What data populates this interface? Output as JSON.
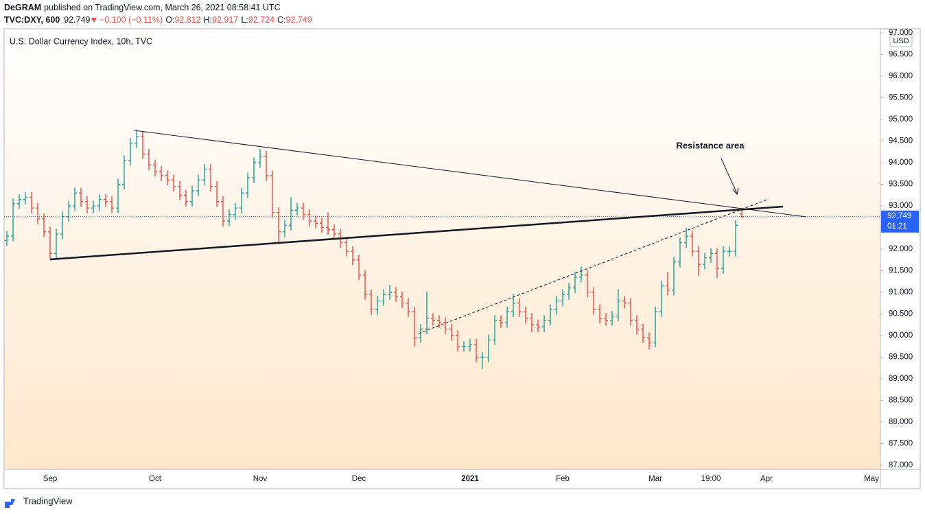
{
  "header": {
    "author": "DeGRAM",
    "published": "published on TradingView.com, March 26, 2021 08:58:41 UTC",
    "symbol": "TVC:DXY, 600",
    "change": "−0.100 (−0.11%)",
    "o_label": "O:",
    "h_label": "H:",
    "l_label": "L:",
    "c_label": "C:"
  },
  "annotation": "Resistance area",
  "currency": "USD",
  "countdown": "01:21",
  "footer": {
    "brand": "TradingView"
  },
  "chart_data": {
    "type": "ohlc",
    "title": "U.S. Dollar Currency Index, 10h, TVC",
    "up_color": "#26a69a",
    "down_color": "#ef5350",
    "ylim": [
      86.905,
      97.095
    ],
    "yticks": [
      {
        "value": 87,
        "label": "87.000"
      },
      {
        "value": 87.5,
        "label": "87.500"
      },
      {
        "value": 88,
        "label": "88.000"
      },
      {
        "value": 88.5,
        "label": "88.500"
      },
      {
        "value": 89,
        "label": "89.000"
      },
      {
        "value": 89.5,
        "label": "89.500"
      },
      {
        "value": 90,
        "label": "90.000"
      },
      {
        "value": 90.5,
        "label": "90.500"
      },
      {
        "value": 91,
        "label": "91.000"
      },
      {
        "value": 91.5,
        "label": "91.500"
      },
      {
        "value": 92,
        "label": "92.000"
      },
      {
        "value": 92.5,
        "label": "92.500"
      },
      {
        "value": 93,
        "label": "93.000"
      },
      {
        "value": 93.5,
        "label": "93.500"
      },
      {
        "value": 94,
        "label": "94.000"
      },
      {
        "value": 94.5,
        "label": "94.500"
      },
      {
        "value": 95,
        "label": "95.000"
      },
      {
        "value": 95.5,
        "label": "95.500"
      },
      {
        "value": 96,
        "label": "96.000"
      },
      {
        "value": 96.5,
        "label": "96.500"
      },
      {
        "value": 97,
        "label": "97.000"
      }
    ],
    "grid": false,
    "categories": [
      null,
      null,
      null,
      null,
      null,
      null,
      null,
      "Sep",
      null,
      null,
      null,
      null,
      null,
      null,
      null,
      null,
      null,
      null,
      null,
      null,
      null,
      null,
      null,
      null,
      "Oct",
      null,
      null,
      null,
      null,
      null,
      null,
      null,
      null,
      null,
      null,
      null,
      null,
      null,
      null,
      null,
      null,
      "Nov",
      null,
      null,
      null,
      null,
      null,
      null,
      null,
      null,
      null,
      null,
      null,
      null,
      null,
      null,
      null,
      "Dec",
      null,
      null,
      null,
      null,
      null,
      null,
      null,
      null,
      null,
      null,
      null,
      null,
      null,
      null,
      null,
      null,
      null,
      "2021",
      null,
      null,
      null,
      null,
      null,
      null,
      null,
      null,
      null,
      null,
      null,
      null,
      null,
      null,
      "Feb",
      null,
      null,
      null,
      null,
      null,
      null,
      null,
      null,
      null,
      null,
      null,
      null,
      null,
      null,
      "Mar",
      null,
      null,
      null,
      null,
      null,
      null,
      null,
      null,
      "19:00",
      null,
      null,
      null,
      null,
      null,
      null,
      null,
      null,
      "Apr",
      null,
      null,
      null,
      null,
      null,
      null,
      null,
      null,
      null,
      null,
      null,
      null,
      null,
      null,
      null,
      null,
      "May"
    ],
    "open": [
      92.2,
      92.3,
      93.05,
      93.15,
      93.2,
      92.95,
      92.7,
      92.4,
      91.9,
      92.35,
      92.75,
      93.0,
      93.3,
      93.1,
      92.95,
      93.0,
      93.15,
      93.1,
      92.95,
      93.5,
      94.05,
      94.45,
      94.6,
      94.2,
      93.95,
      93.8,
      93.7,
      93.6,
      93.45,
      93.25,
      93.1,
      93.35,
      93.6,
      93.85,
      93.45,
      93.1,
      92.65,
      92.8,
      92.95,
      93.3,
      93.65,
      94.0,
      94.15,
      93.7,
      92.85,
      92.4,
      92.55,
      92.9,
      92.95,
      92.8,
      92.65,
      92.6,
      92.5,
      92.45,
      92.35,
      92.15,
      91.95,
      91.75,
      91.4,
      90.95,
      90.6,
      90.8,
      90.95,
      91.0,
      90.9,
      90.75,
      90.55,
      89.95,
      90.15,
      90.4,
      90.35,
      90.3,
      90.15,
      90.0,
      89.75,
      89.75,
      89.8,
      89.5,
      89.5,
      89.9,
      90.35,
      90.3,
      90.55,
      90.75,
      90.55,
      90.4,
      90.25,
      90.2,
      90.35,
      90.6,
      90.8,
      90.95,
      91.1,
      91.35,
      91.4,
      91.0,
      90.6,
      90.4,
      90.35,
      90.45,
      90.8,
      90.75,
      90.35,
      90.15,
      89.95,
      89.85,
      90.55,
      91.15,
      91.05,
      91.7,
      92.15,
      92.3,
      91.95,
      91.65,
      91.8,
      91.9,
      91.55,
      91.95,
      91.95,
      92.812,
      null,
      null,
      null,
      null,
      null,
      null,
      null,
      null,
      null,
      null,
      null,
      null,
      null,
      null,
      null,
      null,
      null,
      null,
      null,
      null,
      null
    ],
    "high": [
      92.42,
      93.17,
      93.27,
      93.32,
      93.32,
      93.07,
      92.82,
      92.52,
      92.47,
      92.87,
      93.12,
      93.42,
      93.42,
      93.22,
      93.12,
      93.27,
      93.27,
      93.22,
      93.62,
      94.17,
      94.57,
      94.75,
      94.72,
      94.32,
      94.07,
      93.92,
      93.82,
      93.72,
      93.57,
      93.37,
      93.47,
      93.72,
      93.97,
      93.97,
      93.57,
      93.22,
      92.92,
      93.07,
      93.42,
      93.77,
      94.12,
      94.32,
      94.27,
      93.82,
      92.97,
      92.67,
      93.2,
      93.07,
      93.07,
      92.92,
      92.77,
      92.72,
      92.85,
      92.57,
      92.47,
      92.27,
      92.07,
      91.87,
      91.52,
      91.07,
      90.92,
      91.07,
      91.17,
      91.12,
      91.02,
      90.87,
      90.67,
      90.27,
      91.02,
      90.52,
      90.47,
      90.42,
      90.27,
      90.12,
      89.87,
      89.92,
      89.92,
      89.62,
      90.02,
      90.47,
      90.47,
      90.67,
      90.97,
      90.87,
      90.67,
      90.52,
      90.37,
      90.47,
      90.72,
      90.92,
      91.07,
      91.22,
      91.47,
      91.6,
      91.52,
      91.12,
      90.72,
      90.52,
      90.57,
      91.07,
      90.92,
      90.87,
      90.47,
      90.27,
      90.07,
      90.67,
      91.27,
      91.47,
      91.82,
      92.27,
      92.5,
      92.42,
      92.07,
      91.92,
      92.02,
      92.02,
      92.07,
      92.07,
      92.67,
      92.917,
      null,
      null,
      null,
      null,
      null,
      null,
      null,
      null,
      null,
      null,
      null,
      null,
      null,
      null,
      null,
      null,
      null,
      null,
      null,
      null,
      null
    ],
    "low": [
      92.08,
      92.18,
      92.93,
      93.03,
      92.83,
      92.58,
      92.28,
      91.77,
      91.78,
      92.23,
      92.63,
      92.88,
      92.98,
      92.83,
      92.83,
      92.88,
      92.98,
      92.83,
      92.83,
      93.38,
      93.93,
      94.33,
      94.08,
      93.83,
      93.68,
      93.58,
      93.48,
      93.33,
      93.13,
      92.98,
      92.98,
      93.23,
      93.48,
      93.33,
      92.98,
      92.53,
      92.53,
      92.68,
      92.83,
      93.18,
      93.53,
      93.88,
      93.58,
      92.73,
      92.13,
      92.28,
      92.43,
      92.78,
      92.68,
      92.53,
      92.48,
      92.38,
      92.33,
      92.23,
      92.03,
      91.83,
      91.63,
      91.28,
      90.83,
      90.48,
      90.48,
      90.68,
      90.83,
      90.78,
      90.63,
      90.43,
      89.75,
      89.83,
      90.03,
      90.23,
      90.18,
      90.03,
      89.88,
      89.63,
      89.63,
      89.63,
      89.38,
      89.22,
      89.38,
      89.78,
      90.18,
      90.18,
      90.43,
      90.43,
      90.28,
      90.08,
      90.08,
      90.08,
      90.23,
      90.48,
      90.68,
      90.83,
      90.98,
      91.23,
      90.88,
      90.48,
      90.28,
      90.23,
      90.23,
      90.33,
      90.63,
      90.23,
      90.03,
      89.83,
      89.68,
      89.73,
      90.43,
      90.93,
      90.93,
      91.58,
      92.03,
      91.83,
      91.38,
      91.53,
      91.68,
      91.33,
      91.43,
      91.83,
      91.83,
      92.724,
      null,
      null,
      null,
      null,
      null,
      null,
      null,
      null,
      null,
      null,
      null,
      null,
      null,
      null,
      null,
      null,
      null,
      null,
      null,
      null,
      null
    ],
    "close": [
      92.3,
      93.05,
      93.15,
      93.2,
      92.95,
      92.7,
      92.4,
      91.9,
      92.35,
      92.75,
      93.0,
      93.3,
      93.1,
      92.95,
      93.0,
      93.15,
      93.1,
      92.95,
      93.5,
      94.05,
      94.45,
      94.6,
      94.2,
      93.95,
      93.8,
      93.7,
      93.6,
      93.45,
      93.25,
      93.1,
      93.35,
      93.6,
      93.85,
      93.45,
      93.1,
      92.65,
      92.8,
      92.95,
      93.3,
      93.65,
      94.0,
      94.15,
      93.7,
      92.85,
      92.4,
      92.55,
      92.9,
      92.95,
      92.8,
      92.65,
      92.6,
      92.5,
      92.45,
      92.35,
      92.15,
      91.95,
      91.75,
      91.4,
      90.95,
      90.6,
      90.8,
      90.95,
      91.0,
      90.9,
      90.75,
      90.55,
      89.95,
      90.15,
      90.4,
      90.35,
      90.3,
      90.15,
      90.0,
      89.75,
      89.75,
      89.8,
      89.5,
      89.5,
      89.9,
      90.35,
      90.3,
      90.55,
      90.75,
      90.55,
      90.4,
      90.25,
      90.2,
      90.35,
      90.6,
      90.8,
      90.95,
      91.1,
      91.35,
      91.4,
      91.0,
      90.6,
      90.4,
      90.35,
      90.45,
      90.8,
      90.75,
      90.35,
      90.15,
      89.95,
      89.85,
      90.55,
      91.15,
      91.05,
      91.7,
      92.15,
      92.3,
      91.95,
      91.65,
      91.8,
      91.9,
      91.55,
      91.95,
      91.95,
      92.55,
      92.749,
      null,
      null,
      null,
      null,
      null,
      null,
      null,
      null,
      null,
      null,
      null,
      null,
      null,
      null,
      null,
      null,
      null,
      null,
      null,
      null,
      null
    ]
  }
}
